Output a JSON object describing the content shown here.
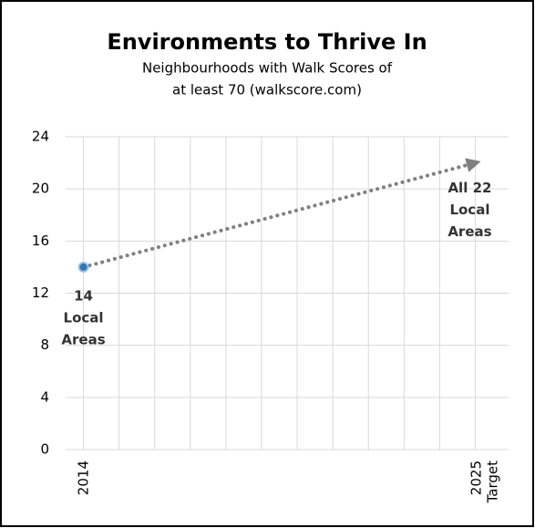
{
  "chart_data": {
    "type": "line",
    "title": "Environments to Thrive In",
    "subtitle": [
      "Neighbourhoods with Walk Scores of",
      "at least 70 (walkscore.com)"
    ],
    "categories": [
      "2014",
      null,
      null,
      null,
      null,
      null,
      null,
      null,
      null,
      null,
      null,
      "2025 Target"
    ],
    "series": [
      {
        "name": "Local areas",
        "color": "#808080",
        "marker_color": "#2e75b6",
        "values": [
          14,
          null,
          null,
          null,
          null,
          null,
          null,
          null,
          null,
          null,
          null,
          22
        ]
      }
    ],
    "connect_gaps": true,
    "ylim": [
      0,
      24
    ],
    "yticks": [
      0,
      4,
      8,
      12,
      16,
      20,
      24
    ],
    "grid": true,
    "annotations": [
      {
        "lines": [
          "14",
          "Local",
          "Areas"
        ]
      },
      {
        "lines": [
          "All 22",
          "Local",
          "Areas"
        ]
      }
    ]
  }
}
